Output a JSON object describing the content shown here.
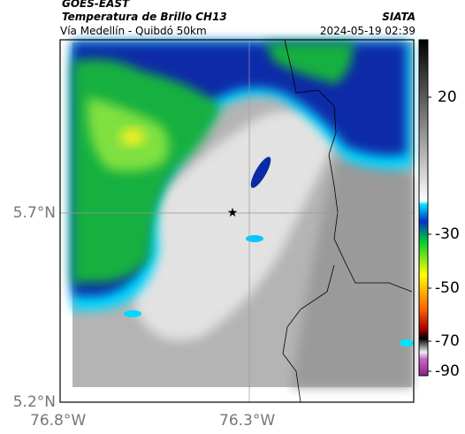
{
  "header": {
    "source": "GOES-EAST",
    "title": "Temperatura de Brillo CH13",
    "org": "SIATA",
    "route": "Vía Medellín - Quibdó 50km",
    "datetime": "2024-05-19 02:39"
  },
  "axes": {
    "lat_labels": [
      "5.7°N",
      "5.2°N"
    ],
    "lon_labels": [
      "76.8°W",
      "76.3°W"
    ]
  },
  "colorbar": {
    "tick_labels": [
      "20",
      "-30",
      "-50",
      "-70",
      "-90"
    ]
  }
}
